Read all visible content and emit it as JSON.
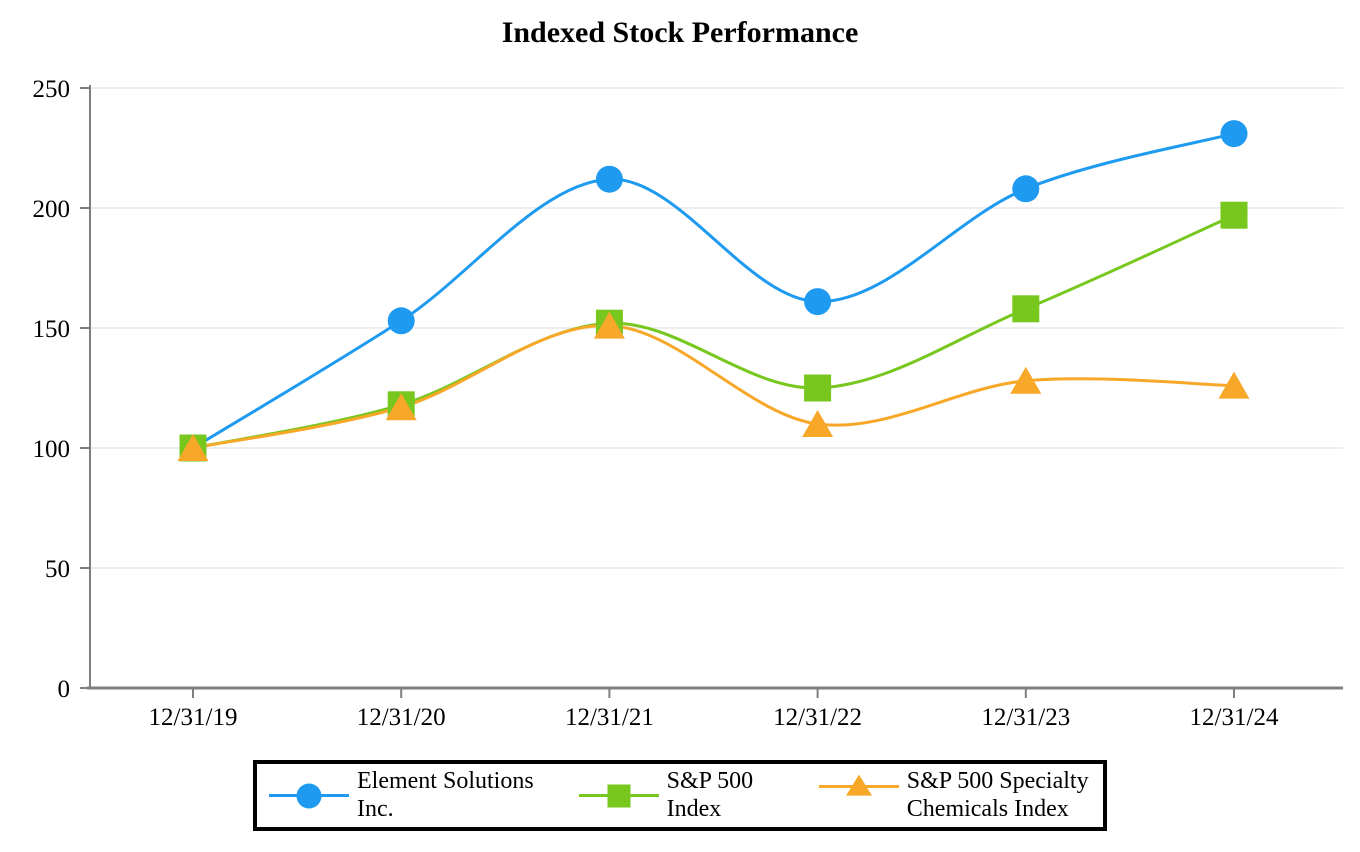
{
  "chart_data": {
    "type": "line",
    "title": "Indexed Stock Performance",
    "categories": [
      "12/31/19",
      "12/31/20",
      "12/31/21",
      "12/31/22",
      "12/31/23",
      "12/31/24"
    ],
    "series": [
      {
        "name": "Element Solutions Inc.",
        "marker": "circle",
        "color": "#1E9BF0",
        "values": [
          100,
          153,
          212,
          161,
          208,
          231
        ]
      },
      {
        "name": "S&P 500 Index",
        "marker": "square",
        "color": "#77C71E",
        "values": [
          100,
          118,
          152,
          125,
          158,
          197
        ]
      },
      {
        "name": "S&P 500 Specialty Chemicals Index",
        "marker": "triangle",
        "color": "#F8A829",
        "values": [
          100,
          117,
          151,
          110,
          128,
          126
        ]
      }
    ],
    "xlabel": "",
    "ylabel": "",
    "ylim": [
      0,
      250
    ],
    "yticks": [
      0,
      50,
      100,
      150,
      200,
      250
    ],
    "grid": true,
    "legend_position": "bottom"
  },
  "colors": {
    "axis": "#7F7F7F",
    "gridline": "#E8E8E8",
    "text": "#000000",
    "legend_border": "#000000",
    "background": "#FFFFFF"
  }
}
